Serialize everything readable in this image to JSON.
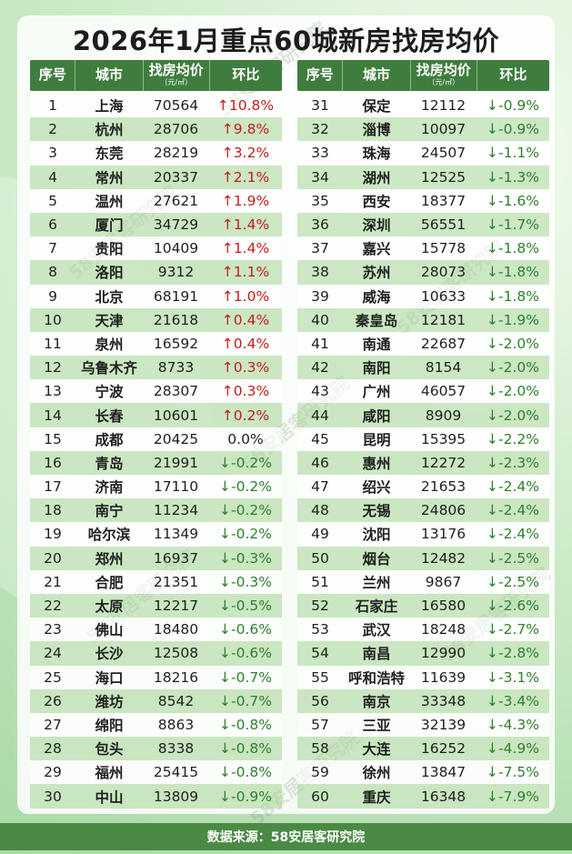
{
  "title": "2026年1月重点60城新房找房均价",
  "headers": {
    "rank": "序号",
    "city": "城市",
    "price": "找房均价",
    "price_unit": "（元/㎡）",
    "change": "环比"
  },
  "left_rows": [
    {
      "rank": "1",
      "city": "上海",
      "price": "70564",
      "change": "↑10.8%",
      "dir": "up"
    },
    {
      "rank": "2",
      "city": "杭州",
      "price": "28706",
      "change": "↑9.8%",
      "dir": "up"
    },
    {
      "rank": "3",
      "city": "东莞",
      "price": "28219",
      "change": "↑3.2%",
      "dir": "up"
    },
    {
      "rank": "4",
      "city": "常州",
      "price": "20337",
      "change": "↑2.1%",
      "dir": "up"
    },
    {
      "rank": "5",
      "city": "温州",
      "price": "27621",
      "change": "↑1.9%",
      "dir": "up"
    },
    {
      "rank": "6",
      "city": "厦门",
      "price": "34729",
      "change": "↑1.4%",
      "dir": "up"
    },
    {
      "rank": "7",
      "city": "贵阳",
      "price": "10409",
      "change": "↑1.4%",
      "dir": "up"
    },
    {
      "rank": "8",
      "city": "洛阳",
      "price": "9312",
      "change": "↑1.1%",
      "dir": "up"
    },
    {
      "rank": "9",
      "city": "北京",
      "price": "68191",
      "change": "↑1.0%",
      "dir": "up"
    },
    {
      "rank": "10",
      "city": "天津",
      "price": "21618",
      "change": "↑0.4%",
      "dir": "up"
    },
    {
      "rank": "11",
      "city": "泉州",
      "price": "16592",
      "change": "↑0.4%",
      "dir": "up"
    },
    {
      "rank": "12",
      "city": "乌鲁木齐",
      "price": "8733",
      "change": "↑0.3%",
      "dir": "up"
    },
    {
      "rank": "13",
      "city": "宁波",
      "price": "28307",
      "change": "↑0.3%",
      "dir": "up"
    },
    {
      "rank": "14",
      "city": "长春",
      "price": "10601",
      "change": "↑0.2%",
      "dir": "up"
    },
    {
      "rank": "15",
      "city": "成都",
      "price": "20425",
      "change": "0.0%",
      "dir": "flat"
    },
    {
      "rank": "16",
      "city": "青岛",
      "price": "21991",
      "change": "↓-0.2%",
      "dir": "down"
    },
    {
      "rank": "17",
      "city": "济南",
      "price": "17110",
      "change": "↓-0.2%",
      "dir": "down"
    },
    {
      "rank": "18",
      "city": "南宁",
      "price": "11234",
      "change": "↓-0.2%",
      "dir": "down"
    },
    {
      "rank": "19",
      "city": "哈尔滨",
      "price": "11349",
      "change": "↓-0.2%",
      "dir": "down"
    },
    {
      "rank": "20",
      "city": "郑州",
      "price": "16937",
      "change": "↓-0.3%",
      "dir": "down"
    },
    {
      "rank": "21",
      "city": "合肥",
      "price": "21351",
      "change": "↓-0.3%",
      "dir": "down"
    },
    {
      "rank": "22",
      "city": "太原",
      "price": "12217",
      "change": "↓-0.5%",
      "dir": "down"
    },
    {
      "rank": "23",
      "city": "佛山",
      "price": "18480",
      "change": "↓-0.6%",
      "dir": "down"
    },
    {
      "rank": "24",
      "city": "长沙",
      "price": "12508",
      "change": "↓-0.6%",
      "dir": "down"
    },
    {
      "rank": "25",
      "city": "海口",
      "price": "18216",
      "change": "↓-0.7%",
      "dir": "down"
    },
    {
      "rank": "26",
      "city": "潍坊",
      "price": "8542",
      "change": "↓-0.7%",
      "dir": "down"
    },
    {
      "rank": "27",
      "city": "绵阳",
      "price": "8863",
      "change": "↓-0.8%",
      "dir": "down"
    },
    {
      "rank": "28",
      "city": "包头",
      "price": "8338",
      "change": "↓-0.8%",
      "dir": "down"
    },
    {
      "rank": "29",
      "city": "福州",
      "price": "25415",
      "change": "↓-0.8%",
      "dir": "down"
    },
    {
      "rank": "30",
      "city": "中山",
      "price": "13809",
      "change": "↓-0.9%",
      "dir": "down"
    }
  ],
  "right_rows": [
    {
      "rank": "31",
      "city": "保定",
      "price": "12112",
      "change": "↓-0.9%",
      "dir": "down"
    },
    {
      "rank": "32",
      "city": "淄博",
      "price": "10097",
      "change": "↓-0.9%",
      "dir": "down"
    },
    {
      "rank": "33",
      "city": "珠海",
      "price": "24507",
      "change": "↓-1.1%",
      "dir": "down"
    },
    {
      "rank": "34",
      "city": "湖州",
      "price": "12525",
      "change": "↓-1.3%",
      "dir": "down"
    },
    {
      "rank": "35",
      "city": "西安",
      "price": "18377",
      "change": "↓-1.6%",
      "dir": "down"
    },
    {
      "rank": "36",
      "city": "深圳",
      "price": "56551",
      "change": "↓-1.7%",
      "dir": "down"
    },
    {
      "rank": "37",
      "city": "嘉兴",
      "price": "15778",
      "change": "↓-1.8%",
      "dir": "down"
    },
    {
      "rank": "38",
      "city": "苏州",
      "price": "28073",
      "change": "↓-1.8%",
      "dir": "down"
    },
    {
      "rank": "39",
      "city": "威海",
      "price": "10633",
      "change": "↓-1.8%",
      "dir": "down"
    },
    {
      "rank": "40",
      "city": "秦皇岛",
      "price": "12181",
      "change": "↓-1.9%",
      "dir": "down"
    },
    {
      "rank": "41",
      "city": "南通",
      "price": "22687",
      "change": "↓-2.0%",
      "dir": "down"
    },
    {
      "rank": "42",
      "city": "南阳",
      "price": "8154",
      "change": "↓-2.0%",
      "dir": "down"
    },
    {
      "rank": "43",
      "city": "广州",
      "price": "46057",
      "change": "↓-2.0%",
      "dir": "down"
    },
    {
      "rank": "44",
      "city": "咸阳",
      "price": "8909",
      "change": "↓-2.0%",
      "dir": "down"
    },
    {
      "rank": "45",
      "city": "昆明",
      "price": "15395",
      "change": "↓-2.2%",
      "dir": "down"
    },
    {
      "rank": "46",
      "city": "惠州",
      "price": "12272",
      "change": "↓-2.3%",
      "dir": "down"
    },
    {
      "rank": "47",
      "city": "绍兴",
      "price": "21653",
      "change": "↓-2.4%",
      "dir": "down"
    },
    {
      "rank": "48",
      "city": "无锡",
      "price": "24806",
      "change": "↓-2.4%",
      "dir": "down"
    },
    {
      "rank": "49",
      "city": "沈阳",
      "price": "13176",
      "change": "↓-2.4%",
      "dir": "down"
    },
    {
      "rank": "50",
      "city": "烟台",
      "price": "12482",
      "change": "↓-2.5%",
      "dir": "down"
    },
    {
      "rank": "51",
      "city": "兰州",
      "price": "9867",
      "change": "↓-2.5%",
      "dir": "down"
    },
    {
      "rank": "52",
      "city": "石家庄",
      "price": "16580",
      "change": "↓-2.6%",
      "dir": "down"
    },
    {
      "rank": "53",
      "city": "武汉",
      "price": "18248",
      "change": "↓-2.7%",
      "dir": "down"
    },
    {
      "rank": "54",
      "city": "南昌",
      "price": "12990",
      "change": "↓-2.8%",
      "dir": "down"
    },
    {
      "rank": "55",
      "city": "呼和浩特",
      "price": "11639",
      "change": "↓-3.1%",
      "dir": "down"
    },
    {
      "rank": "56",
      "city": "南京",
      "price": "33348",
      "change": "↓-3.4%",
      "dir": "down"
    },
    {
      "rank": "57",
      "city": "三亚",
      "price": "32139",
      "change": "↓-4.3%",
      "dir": "down"
    },
    {
      "rank": "58",
      "city": "大连",
      "price": "16252",
      "change": "↓-4.9%",
      "dir": "down"
    },
    {
      "rank": "59",
      "city": "徐州",
      "price": "13847",
      "change": "↓-7.5%",
      "dir": "down"
    },
    {
      "rank": "60",
      "city": "重庆",
      "price": "16348",
      "change": "↓-7.9%",
      "dir": "down"
    }
  ],
  "footer": "数据来源：58安居客研究院",
  "watermark": "58安居客研究院"
}
